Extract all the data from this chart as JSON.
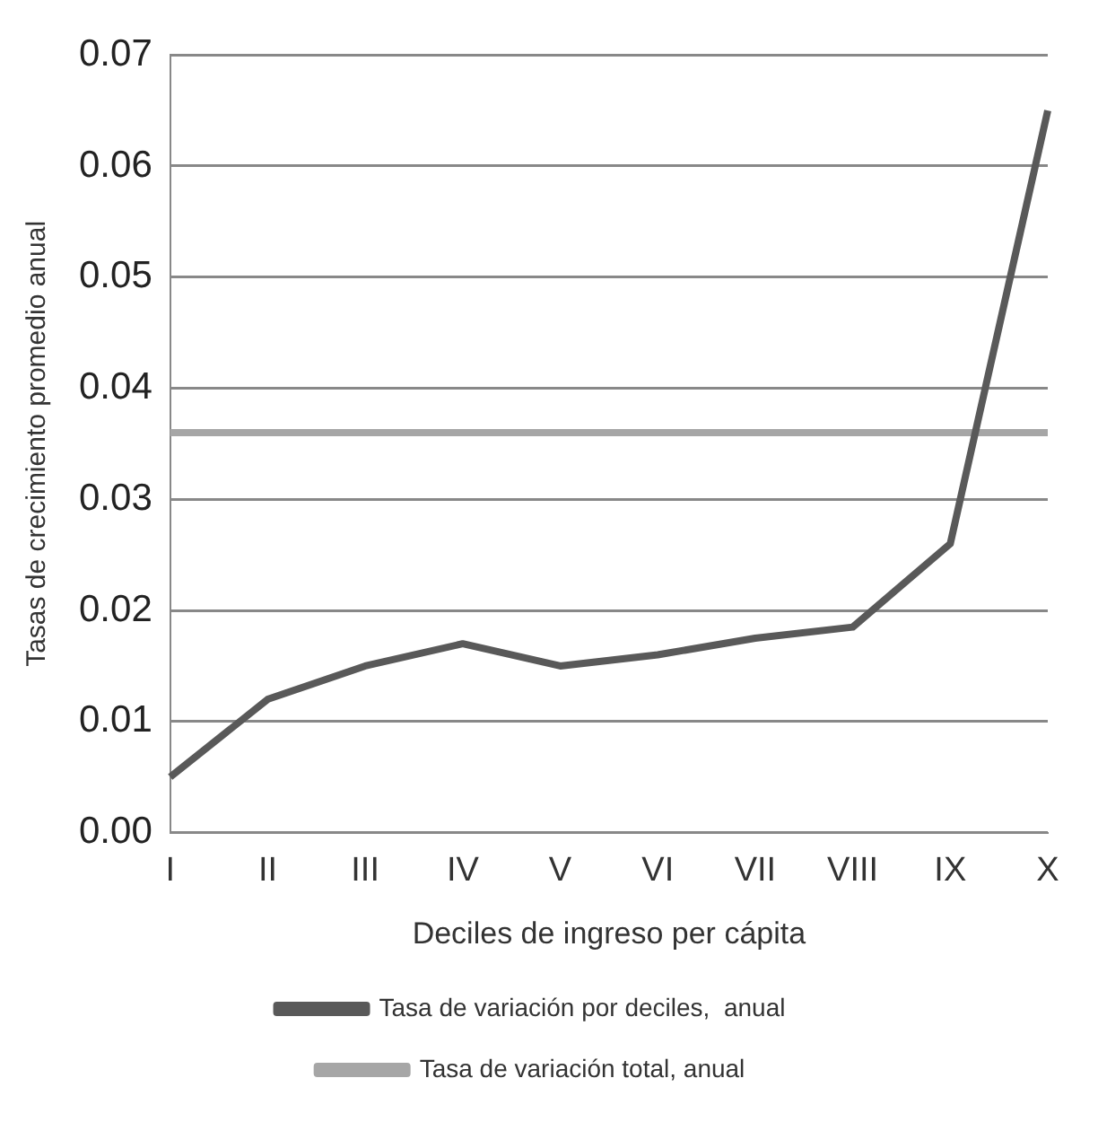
{
  "chart_data": {
    "type": "line",
    "xlabel": "Deciles de ingreso per cápita",
    "ylabel": "Tasas de crecimiento promedio anual",
    "categories": [
      "I",
      "II",
      "III",
      "IV",
      "V",
      "VI",
      "VII",
      "VIII",
      "IX",
      "X"
    ],
    "series": [
      {
        "name": "Tasa de variación por deciles,  anual",
        "color": "#595959",
        "values": [
          0.005,
          0.012,
          0.015,
          0.017,
          0.015,
          0.016,
          0.0175,
          0.0185,
          0.026,
          0.065
        ]
      },
      {
        "name": "Tasa de variación total, anual",
        "color": "#a6a6a6",
        "values": [
          0.036,
          0.036,
          0.036,
          0.036,
          0.036,
          0.036,
          0.036,
          0.036,
          0.036,
          0.036
        ]
      }
    ],
    "ylim": [
      0,
      0.07
    ],
    "yticks": [
      {
        "value": 0,
        "label": "0.00"
      },
      {
        "value": 0.01,
        "label": "0.01"
      },
      {
        "value": 0.02,
        "label": "0.02"
      },
      {
        "value": 0.03,
        "label": "0.03"
      },
      {
        "value": 0.04,
        "label": "0.04"
      },
      {
        "value": 0.05,
        "label": "0.05"
      },
      {
        "value": 0.06,
        "label": "0.06"
      },
      {
        "value": 0.07,
        "label": "0.07"
      }
    ],
    "grid": "y",
    "legend": "bottom",
    "marker": "none",
    "line_style": "solid"
  }
}
